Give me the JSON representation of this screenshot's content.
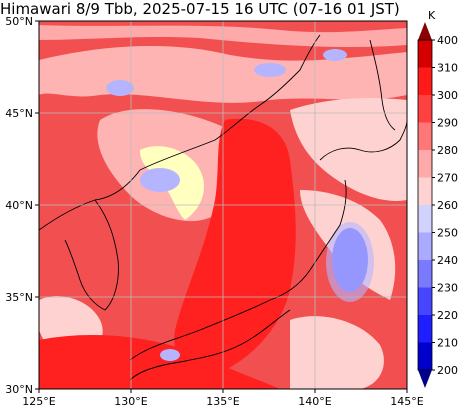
{
  "title": "Himawari 8/9 Tbb, 2025-07-15 16 UTC (07-16 01 JST)",
  "map": {
    "lon_range": [
      125,
      145
    ],
    "lat_range": [
      30,
      50
    ],
    "lon_ticks": [
      125,
      130,
      135,
      140,
      145
    ],
    "lat_ticks": [
      30,
      35,
      40,
      45,
      50
    ],
    "lon_tick_labels": [
      "125°E",
      "130°E",
      "135°E",
      "140°E",
      "145°E"
    ],
    "lat_tick_labels": [
      "30°N",
      "35°N",
      "40°N",
      "45°N",
      "50°N"
    ],
    "gridlines": true,
    "coastlines": true
  },
  "colorbar": {
    "unit": "K",
    "ticks": [
      200,
      210,
      220,
      230,
      240,
      250,
      260,
      270,
      280,
      290,
      300,
      310,
      400
    ],
    "colors": [
      "#00008b",
      "#0000cd",
      "#1e1eff",
      "#4646ff",
      "#7a7aff",
      "#aaaaff",
      "#d2d2ff",
      "#ffffc0",
      "#ffd2d2",
      "#ffaaaa",
      "#ff7777",
      "#ff4040",
      "#ff1a1a",
      "#d40000",
      "#8b0000"
    ],
    "extend": "both"
  },
  "colors": {
    "base_warm": "#f25050",
    "hot": "#ff2020",
    "pink": "#ffb4b4",
    "light_pink": "#ffd2d2",
    "yellow": "#ffffc0",
    "light_blue": "#b4b4ff",
    "blue": "#6a6aff",
    "coast": "#000000",
    "grid": "#bbbbbb"
  }
}
